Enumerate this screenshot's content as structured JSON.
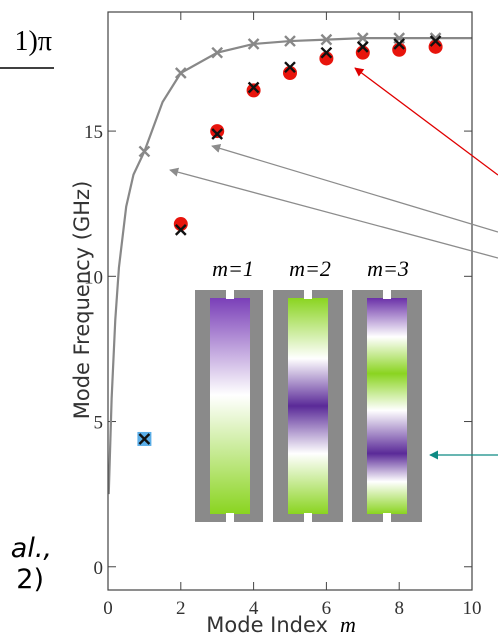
{
  "chart_data": {
    "type": "scatter",
    "ylabel": "Mode Frequency (GHz)",
    "xlabel": "Mode Index",
    "xlabel_symbol": "m",
    "xlim": [
      0,
      10
    ],
    "xticks": [
      0,
      2,
      4,
      6,
      8,
      10
    ],
    "ylim": [
      -0.8,
      19.1
    ],
    "yticks": [
      0,
      5,
      10,
      15
    ],
    "series": [
      {
        "mode": "line",
        "color": "#888888",
        "x": [
          0.02,
          0.1,
          0.2,
          0.3,
          0.5,
          0.7,
          1,
          1.5,
          2,
          3,
          4,
          5,
          6,
          7,
          8,
          9,
          10
        ],
        "values": [
          2.5,
          5.8,
          8.5,
          10.3,
          12.4,
          13.5,
          14.3,
          16.0,
          17.0,
          17.7,
          18.0,
          18.1,
          18.15,
          18.2,
          18.2,
          18.2,
          18.2
        ]
      },
      {
        "marker": "x",
        "color": "#888888",
        "x": [
          1,
          2,
          3,
          4,
          5,
          6,
          7,
          8,
          9
        ],
        "values": [
          14.3,
          17.0,
          17.7,
          18.0,
          18.1,
          18.15,
          18.2,
          18.2,
          18.2
        ]
      },
      {
        "marker": "square",
        "color": "#5aaee8",
        "x": [
          1
        ],
        "values": [
          4.4
        ]
      },
      {
        "marker": "circle",
        "color": "#e8140c",
        "x": [
          2,
          3,
          4,
          5,
          6,
          7,
          8,
          9
        ],
        "values": [
          11.8,
          15.0,
          16.4,
          17.0,
          17.5,
          17.7,
          17.8,
          17.9
        ]
      },
      {
        "marker": "x",
        "color": "#111111",
        "x": [
          1,
          2,
          3,
          4,
          5,
          6,
          7,
          8,
          9
        ],
        "values": [
          4.4,
          11.6,
          14.9,
          16.5,
          17.2,
          17.7,
          17.9,
          18.0,
          18.1
        ]
      }
    ],
    "inset_labels": [
      "m=1",
      "m=2",
      "m=3"
    ],
    "annotations": [
      "1)π",
      "al.,",
      "2)"
    ]
  }
}
